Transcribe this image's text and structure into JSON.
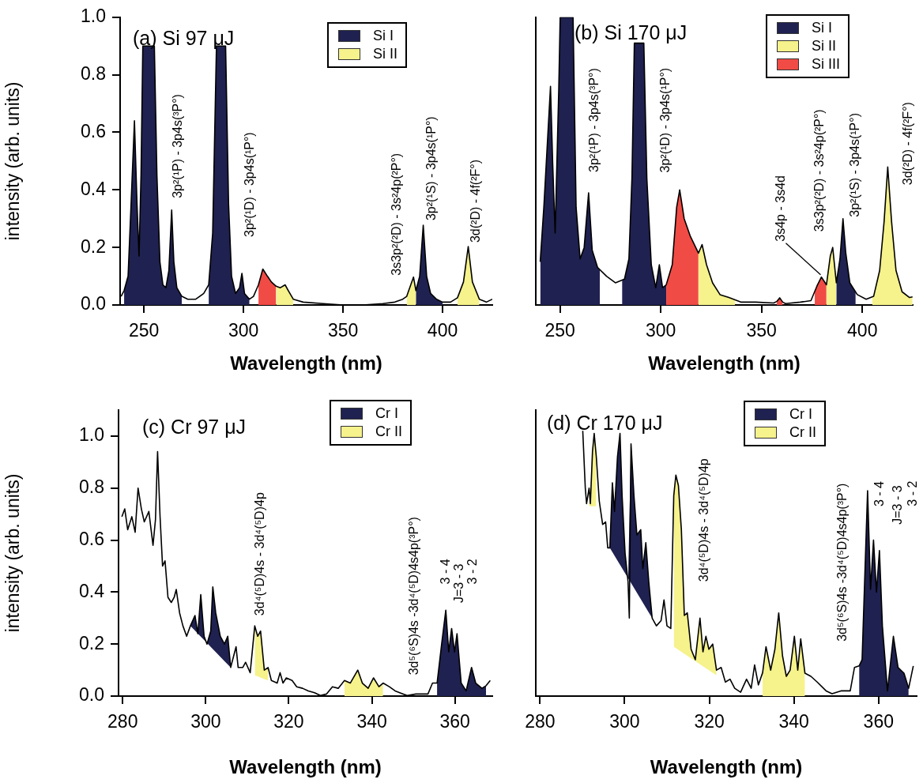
{
  "chart_data": [
    {
      "type": "line",
      "title": "(a) Si 97 μJ",
      "xlabel": "Wavelength (nm)",
      "ylabel": "intensity (arb. units)",
      "xlim": [
        238,
        425
      ],
      "ylim": [
        0,
        1.0
      ],
      "xticks": [
        250,
        300,
        350,
        400
      ],
      "yticks": [
        {
          "value": 0,
          "label": "0.0"
        },
        {
          "value": 0.2,
          "label": "0.2"
        },
        {
          "value": 0.4,
          "label": "0.4"
        },
        {
          "value": 0.6,
          "label": "0.6"
        },
        {
          "value": 0.8,
          "label": "0.8"
        },
        {
          "value": 1.0,
          "label": "1.0"
        }
      ],
      "legend": "top right",
      "series": [
        {
          "type": "line",
          "color": "#000000",
          "x": [
            238.5,
            240,
            242,
            243.5,
            245.2,
            246.5,
            247.5,
            248.5,
            249.4,
            255.2,
            256.5,
            258,
            259.5,
            261,
            262.5,
            263.9,
            265,
            266.5,
            269,
            272,
            276,
            280,
            282.5,
            284.5,
            286.4,
            291,
            292.5,
            294,
            296,
            298,
            299.2,
            300.5,
            303,
            305,
            307.5,
            309.7,
            312,
            314,
            316.4,
            318.5,
            320.9,
            322.5,
            325,
            330,
            340,
            350,
            360,
            370,
            376,
            380,
            382,
            383,
            385.4,
            386.6,
            388.5,
            390.3,
            392,
            394,
            397,
            400,
            404,
            407.5,
            410.5,
            412.9,
            415,
            418.5,
            422,
            425
          ],
          "values": [
            0.03,
            0.05,
            0.1,
            0.35,
            0.64,
            0.35,
            0.17,
            0.45,
            0.9,
            0.9,
            0.45,
            0.15,
            0.07,
            0.06,
            0.12,
            0.33,
            0.15,
            0.06,
            0.03,
            0.02,
            0.02,
            0.04,
            0.07,
            0.25,
            0.9,
            0.9,
            0.35,
            0.1,
            0.04,
            0.06,
            0.11,
            0.04,
            0.02,
            0.03,
            0.07,
            0.125,
            0.1,
            0.08,
            0.065,
            0.06,
            0.07,
            0.05,
            0.02,
            0.01,
            0.005,
            0,
            0,
            0.005,
            0.01,
            0.02,
            0.03,
            0.05,
            0.097,
            0.05,
            0.1,
            0.277,
            0.1,
            0.04,
            0.02,
            0.01,
            0.01,
            0.025,
            0.08,
            0.203,
            0.08,
            0.02,
            0.01,
            0.02
          ]
        },
        {
          "type": "area",
          "name": "Si I",
          "color": "#1f2150",
          "x": [
            240,
            240,
            242,
            243.5,
            245.2,
            246.5,
            247.5,
            248.5,
            249.4,
            255.2,
            256.5,
            258,
            259.5,
            261,
            262.5,
            263.9,
            265,
            266.5,
            269,
            269,
            275,
            282.5,
            282.5,
            284.5,
            286.4,
            291,
            292.5,
            294,
            296,
            298,
            299.2,
            300.5,
            303,
            303,
            345,
            386.6,
            386.6,
            388.5,
            390.3,
            392,
            394,
            397,
            400,
            400
          ],
          "values": [
            0,
            0.05,
            0.1,
            0.35,
            0.64,
            0.35,
            0.17,
            0.45,
            0.9,
            0.9,
            0.45,
            0.15,
            0.07,
            0.06,
            0.12,
            0.33,
            0.15,
            0.06,
            0.03,
            0,
            null,
            0,
            0.07,
            0.25,
            0.9,
            0.9,
            0.35,
            0.1,
            0.04,
            0.06,
            0.11,
            0.04,
            0.02,
            0,
            null,
            0,
            0.05,
            0.1,
            0.277,
            0.1,
            0.04,
            0.02,
            0.01,
            0
          ]
        },
        {
          "type": "area",
          "name": "Si II",
          "color": "#f6f28c",
          "x": [
            316.4,
            316.4,
            318.5,
            320.9,
            322.5,
            325,
            325,
            350,
            382,
            382,
            383,
            385.4,
            386.6,
            386.6,
            395,
            407.5,
            407.5,
            410.5,
            412.9,
            415,
            418.5,
            418.5
          ],
          "values": [
            0,
            0.065,
            0.06,
            0.07,
            0.05,
            0.02,
            0,
            null,
            0,
            0.03,
            0.05,
            0.097,
            0.05,
            0,
            null,
            0,
            0.025,
            0.08,
            0.203,
            0.08,
            0.02,
            0
          ]
        },
        {
          "type": "area",
          "color": "#f14b45",
          "x": [
            307.5,
            307.5,
            309.7,
            312,
            314,
            316.4,
            316.4
          ],
          "values": [
            0,
            0.07,
            0.125,
            0.1,
            0.08,
            0.065,
            0
          ]
        }
      ],
      "annotations": [
        {
          "text": "3p²(¹P) - 3p4s(³P°)",
          "x": 263.9,
          "y": 0.33
        },
        {
          "text": "3p²(¹D) - 3p4s(¹P°)",
          "x": 299.2,
          "y": 0.11
        },
        {
          "text": "3s3p²(²D) - 3s²4p(²P°)",
          "x": 385.4,
          "y": 0.097
        },
        {
          "text": "3p²(¹S) - 3p4s(¹P°)",
          "x": 390.3,
          "y": 0.277
        },
        {
          "text": "3d(²D) - 4f(²F°)",
          "x": 412.9,
          "y": 0.203
        }
      ]
    },
    {
      "type": "line",
      "title": "(b) Si 170 μJ",
      "xlabel": "Wavelength (nm)",
      "xlim": [
        238,
        425
      ],
      "ylim": [
        0,
        1.0
      ],
      "xticks": [
        250,
        300,
        350,
        400
      ],
      "tick_labels": "x",
      "legend": "top right",
      "series": [
        {
          "type": "line",
          "color": "#000000",
          "x": [
            240.2,
            242,
            245.3,
            246.4,
            247.6,
            249.4,
            250.1,
            256.5,
            258,
            260,
            262,
            264.2,
            266,
            268.7,
            273.1,
            277.5,
            282,
            284.2,
            285.7,
            286.9,
            291.6,
            293.1,
            295.3,
            297.5,
            299.3,
            300.9,
            302.7,
            305.7,
            307.9,
            309.4,
            311.6,
            314.6,
            318.7,
            320.5,
            322.7,
            325.7,
            329.4,
            333.8,
            339.7,
            347.1,
            356,
            357.5,
            359,
            360.5,
            361.9,
            369.3,
            374.5,
            377.5,
            379.7,
            382.2,
            384.1,
            385.3,
            387.1,
            388.9,
            390.4,
            391.8,
            393.8,
            397.5,
            401.9,
            405.6,
            408.6,
            410.8,
            412.6,
            414.5,
            416.7,
            419.7,
            423.4,
            424.9
          ],
          "values": [
            0.15,
            0.34,
            0.76,
            0.49,
            0.25,
            0.75,
            1.0,
            1.0,
            0.34,
            0.16,
            0.2,
            0.39,
            0.19,
            0.13,
            0.1,
            0.077,
            0.09,
            0.16,
            0.44,
            0.91,
            0.91,
            0.44,
            0.14,
            0.06,
            0.14,
            0.06,
            0.07,
            0.14,
            0.34,
            0.4,
            0.3,
            0.24,
            0.18,
            0.21,
            0.14,
            0.077,
            0.036,
            0.026,
            0.01,
            0.01,
            0.007,
            0.012,
            0.025,
            0.01,
            0.005,
            0.01,
            0.015,
            0.066,
            0.097,
            0.07,
            0.17,
            0.2,
            0.077,
            0.16,
            0.3,
            0.18,
            0.077,
            0.036,
            0.02,
            0.03,
            0.12,
            0.29,
            0.48,
            0.29,
            0.12,
            0.046,
            0.026,
            0.028
          ]
        },
        {
          "type": "area",
          "name": "Si I",
          "color": "#1f2150",
          "x": [
            240.2,
            240.2,
            242,
            245.3,
            246.4,
            247.6,
            249.4,
            250.1,
            256.5,
            258,
            260,
            262,
            264.2,
            266,
            268.7,
            269.8,
            269.8,
            275,
            280.8,
            280.8,
            282,
            284.2,
            285.7,
            286.9,
            291.6,
            293.1,
            295.3,
            297.5,
            299.3,
            300.9,
            302.7,
            302.7,
            345,
            387.1,
            387.1,
            388.9,
            390.4,
            391.8,
            393.8,
            396.7,
            396.7
          ],
          "values": [
            0,
            0.15,
            0.34,
            0.76,
            0.49,
            0.25,
            0.75,
            1.0,
            1.0,
            0.34,
            0.16,
            0.2,
            0.39,
            0.19,
            0.13,
            0.12,
            0,
            null,
            0,
            0.085,
            0.09,
            0.16,
            0.44,
            0.91,
            0.91,
            0.44,
            0.14,
            0.06,
            0.14,
            0.06,
            0.07,
            0,
            null,
            0,
            0.077,
            0.16,
            0.3,
            0.18,
            0.077,
            0.045,
            0
          ]
        },
        {
          "type": "area",
          "name": "Si II",
          "color": "#f6f28c",
          "x": [
            318.7,
            318.7,
            320.5,
            322.7,
            325.7,
            329.4,
            333.8,
            336.8,
            336.8,
            360,
            382.2,
            382.2,
            384.1,
            385.3,
            387.1,
            387.1,
            400,
            404.9,
            404.9,
            405.6,
            408.6,
            410.8,
            412.6,
            414.5,
            416.7,
            419.7,
            423.4,
            424.9,
            424.9
          ],
          "values": [
            0,
            0.18,
            0.21,
            0.14,
            0.077,
            0.036,
            0.026,
            0.018,
            0,
            null,
            0,
            0.07,
            0.17,
            0.2,
            0.077,
            0,
            null,
            0,
            0.028,
            0.03,
            0.12,
            0.29,
            0.48,
            0.29,
            0.12,
            0.046,
            0.026,
            0.028,
            0
          ]
        },
        {
          "type": "area",
          "name": "Si III",
          "color": "#f14b45",
          "x": [
            302.7,
            302.7,
            305.7,
            307.9,
            309.4,
            311.6,
            314.6,
            318.7,
            318.7,
            340,
            357.5,
            357.5,
            359,
            360.5,
            360.5,
            370,
            376.4,
            376.4,
            377.5,
            379.7,
            382.2,
            382.2
          ],
          "values": [
            0,
            0.07,
            0.14,
            0.34,
            0.4,
            0.3,
            0.24,
            0.18,
            0,
            null,
            0,
            0.012,
            0.025,
            0.01,
            0,
            null,
            0,
            0.047,
            0.066,
            0.097,
            0.07,
            0
          ]
        }
      ],
      "annotations": [
        {
          "text": "3p²(¹P) - 3p4s(³P°)",
          "x": 264.2,
          "y": 0.39
        },
        "3p²(¹D) - 3p4s(¹P°)",
        {
          "text": "3s4p - 3s4d",
          "x": 379.7,
          "y": 0.097
        },
        {
          "text": "3s3p²(²D) - 3s²4p(²P°)",
          "x": 385.3,
          "y": 0.2
        },
        {
          "text": "3p²(¹S) - 3p4s(¹P°)",
          "x": 390.4,
          "y": 0.3
        },
        {
          "text": "3d(²D) - 4f(²F°)",
          "x": 412.6,
          "y": 0.48
        }
      ]
    },
    {
      "type": "line",
      "title": "(c) Cr 97 μJ",
      "xlabel": "Wavelength (nm)",
      "ylabel": "intensity (arb. units)",
      "xlim": [
        279,
        369
      ],
      "ylim": [
        0,
        1.1
      ],
      "xticks": [
        280,
        300,
        320,
        340,
        360
      ],
      "yticks": [
        {
          "value": 0,
          "label": "0.0"
        },
        {
          "value": 0.2,
          "label": "0.2"
        },
        {
          "value": 0.4,
          "label": "0.4"
        },
        {
          "value": 0.6,
          "label": "0.6"
        },
        {
          "value": 0.8,
          "label": "0.8"
        },
        {
          "value": 1.0,
          "label": "1.0"
        }
      ],
      "legend": "top right",
      "series": [
        {
          "type": "line",
          "color": "#000000",
          "x": [
            279.8,
            280.5,
            281.2,
            282.2,
            283,
            283.7,
            284.5,
            285.2,
            286.3,
            287.3,
            287.9,
            288.4,
            289,
            289.6,
            290.2,
            290.9,
            291.7,
            292.4,
            292.9,
            293.7,
            294.5,
            295.4,
            296.3,
            297.4,
            298.1,
            298.8,
            299.6,
            300.3,
            301.2,
            301.7,
            302.4,
            303.5,
            304.5,
            305.3,
            306,
            307.3,
            307.8,
            308.9,
            309.6,
            310.7,
            311.8,
            312.5,
            313.2,
            314.1,
            315,
            315.8,
            317.2,
            317.9,
            318.6,
            319.4,
            320.8,
            321.9,
            323.3,
            324.7,
            326.2,
            327.6,
            329.1,
            330.5,
            331.9,
            333.4,
            334.8,
            336.6,
            337.7,
            339.1,
            340.4,
            341.7,
            342.7,
            344.2,
            345.6,
            348.5,
            350.6,
            353.5,
            354.6,
            355.7,
            356.8,
            357.8,
            358.5,
            359.2,
            359.9,
            360.5,
            361.5,
            362.7,
            364,
            365,
            366.5,
            367.5,
            368.5
          ],
          "values": [
            0.69,
            0.72,
            0.64,
            0.69,
            0.63,
            0.8,
            0.72,
            0.67,
            0.71,
            0.58,
            0.68,
            0.94,
            0.69,
            0.5,
            0.52,
            0.38,
            0.36,
            0.38,
            0.41,
            0.32,
            0.27,
            0.23,
            0.27,
            0.31,
            0.24,
            0.39,
            0.23,
            0.2,
            0.25,
            0.42,
            0.32,
            0.23,
            0.2,
            0.23,
            0.11,
            0.19,
            0.11,
            0.11,
            0.13,
            0.09,
            0.27,
            0.23,
            0.25,
            0.1,
            0.11,
            0.06,
            0.05,
            0.09,
            0.05,
            0.07,
            0.06,
            0.036,
            0.03,
            0.02,
            0.013,
            0.002,
            0.008,
            0.036,
            0.03,
            0.06,
            0.05,
            0.1,
            0.05,
            0.03,
            0.07,
            0.036,
            0.05,
            0.036,
            0.02,
            0.002,
            0.008,
            0.008,
            0.05,
            0.05,
            0.2,
            0.33,
            0.17,
            0.26,
            0.17,
            0.24,
            0.05,
            0.02,
            0.11,
            0.05,
            0.03,
            0.04,
            0.06
          ]
        },
        {
          "type": "area",
          "name": "Cr I",
          "color": "#1f2150",
          "x": [
            296.3,
            297.4,
            298.1,
            298.8,
            299.6,
            300.3,
            301.2,
            301.7,
            302.4,
            303.5,
            304.5,
            305.3,
            306,
            330,
            355.7,
            355.7,
            356.8,
            357.8,
            358.5,
            359.2,
            359.9,
            360.5,
            361.5,
            362.7,
            364,
            365,
            366.5,
            367.5,
            367.5
          ],
          "values": [
            0.27,
            0.31,
            0.24,
            0.39,
            0.23,
            0.2,
            0.25,
            0.42,
            0.32,
            0.23,
            0.2,
            0.23,
            0.11,
            null,
            0,
            0.05,
            0.2,
            0.33,
            0.17,
            0.26,
            0.17,
            0.24,
            0.05,
            0.02,
            0.11,
            0.05,
            0.03,
            0.04,
            0
          ]
        },
        {
          "type": "area",
          "name": "Cr II",
          "color": "#f6f28c",
          "x": [
            311.8,
            311.8,
            312.5,
            313.2,
            314.1,
            315,
            315,
            325,
            333.4,
            333.4,
            334.8,
            336.6,
            337.7,
            339.1,
            340.4,
            341.7,
            342.7,
            342.7
          ],
          "values": [
            0.08,
            0.27,
            0.23,
            0.25,
            0.1,
            0.11,
            0.06,
            null,
            0,
            0.06,
            0.05,
            0.1,
            0.05,
            0.03,
            0.07,
            0.036,
            0.05,
            0
          ]
        }
      ],
      "annotations": [
        {
          "text": "3d⁴(⁵D)4s - 3d⁴(⁵D)4p",
          "x": 311.8,
          "y": 0.27
        },
        {
          "text": "3d⁵(⁶S)4s -3d⁴(⁵D)4s4p(³P°)",
          "x": 350.6,
          "y": 0.008
        },
        {
          "text": "3 - 4",
          "x": 357.8,
          "y": 0.33
        },
        {
          "text": "J=3 - 3",
          "x": 360.5,
          "y": 0.24
        },
        "3 - 2"
      ]
    },
    {
      "type": "line",
      "title": "(d) Cr 170 μJ",
      "xlabel": "Wavelength (nm)",
      "xlim": [
        279,
        369
      ],
      "ylim": [
        0,
        1.1
      ],
      "xticks": [
        280,
        300,
        320,
        340,
        360
      ],
      "tick_labels": "x",
      "legend": "top right",
      "series": [
        {
          "type": "line",
          "color": "#000000",
          "x": [
            290.1,
            290.7,
            291,
            291.6,
            291.9,
            292.4,
            292.8,
            293.3,
            294,
            294.8,
            295.5,
            296,
            296.5,
            297.1,
            297.6,
            298.3,
            298.9,
            299.4,
            300.1,
            300.8,
            301.1,
            301.5,
            302.2,
            302.9,
            303.8,
            304.3,
            305,
            305.7,
            306.5,
            307.5,
            308.6,
            309.3,
            310,
            310.9,
            311.6,
            312.1,
            312.7,
            313.4,
            314.1,
            314.8,
            315.7,
            316.7,
            317.8,
            318.5,
            319.2,
            319.9,
            320.8,
            321.7,
            322.8,
            323.8,
            324.9,
            326,
            327.4,
            328.8,
            329.9,
            330.7,
            331.6,
            332.6,
            333.4,
            334.5,
            335.5,
            336.4,
            337.3,
            338.2,
            339.1,
            340.1,
            340.9,
            341.6,
            342.6,
            344,
            345.5,
            347.6,
            349,
            351.1,
            353.3,
            354.3,
            355.4,
            356.1,
            357.4,
            358.1,
            358.8,
            359.5,
            360.2,
            360.9,
            362.1,
            363.5,
            364.6,
            366,
            367.1,
            368.2
          ],
          "values": [
            1.02,
            0.8,
            0.74,
            0.8,
            0.74,
            0.94,
            1.01,
            0.92,
            0.75,
            0.66,
            0.67,
            0.57,
            0.57,
            0.82,
            0.71,
            0.92,
            1.01,
            0.77,
            0.55,
            0.44,
            0.3,
            0.97,
            0.77,
            0.62,
            0.64,
            0.49,
            0.59,
            0.44,
            0.3,
            0.27,
            0.29,
            0.37,
            0.27,
            0.26,
            0.77,
            0.85,
            0.81,
            0.64,
            0.31,
            0.32,
            0.18,
            0.14,
            0.3,
            0.17,
            0.23,
            0.18,
            0.2,
            0.1,
            0.11,
            0.054,
            0.065,
            0.03,
            0.015,
            0.065,
            0.03,
            0.12,
            0.043,
            0.09,
            0.19,
            0.1,
            0.18,
            0.32,
            0.155,
            0.076,
            0.1,
            0.23,
            0.1,
            0.22,
            0.088,
            0.076,
            0.054,
            0.02,
            0.009,
            0.02,
            0.02,
            0.11,
            0.116,
            0.14,
            0.79,
            0.41,
            0.6,
            0.4,
            0.56,
            0.27,
            0.02,
            0.23,
            0.11,
            0.088,
            0.03,
            0.116
          ]
        },
        {
          "type": "area",
          "name": "Cr I",
          "color": "#1f2150",
          "x": [
            296.5,
            297.1,
            297.6,
            298.3,
            298.9,
            299.4,
            300.1,
            300.8,
            301.5,
            302.2,
            302.9,
            303.8,
            304.3,
            305,
            305.7,
            306.5,
            330,
            355.4,
            355.4,
            356.1,
            357.4,
            358.1,
            358.8,
            359.5,
            360.2,
            360.9,
            362.1,
            363.5,
            364.6,
            366,
            367.1,
            367.1
          ],
          "values": [
            0.57,
            0.82,
            0.71,
            0.92,
            1.01,
            0.77,
            0.55,
            0.44,
            0.97,
            0.77,
            0.62,
            0.64,
            0.49,
            0.59,
            0.44,
            0.3,
            null,
            0,
            0.116,
            0.14,
            0.79,
            0.41,
            0.6,
            0.4,
            0.56,
            0.27,
            0.02,
            0.23,
            0.11,
            0.088,
            0.03,
            0
          ]
        },
        {
          "type": "area",
          "name": "Cr II",
          "color": "#f6f28c",
          "x": [
            291.6,
            291.6,
            291.9,
            292.4,
            292.8,
            293.3,
            293.3,
            300,
            311.6,
            311.6,
            312.1,
            312.7,
            313.4,
            314.1,
            314.8,
            315.7,
            316.7,
            317.8,
            318.5,
            319.2,
            319.9,
            320.8,
            321.7,
            321.7,
            327,
            332.6,
            332.6,
            333.4,
            334.5,
            335.5,
            336.4,
            337.3,
            338.2,
            339.1,
            340.1,
            340.9,
            341.6,
            342.6,
            342.6
          ],
          "values": [
            0.73,
            0.8,
            0.74,
            0.94,
            1.01,
            0.92,
            0.73,
            null,
            0.19,
            0.77,
            0.85,
            0.81,
            0.64,
            0.31,
            0.32,
            0.18,
            0.14,
            0.3,
            0.17,
            0.23,
            0.18,
            0.2,
            0.1,
            0.08,
            null,
            0,
            0.09,
            0.19,
            0.1,
            0.18,
            0.32,
            0.155,
            0.076,
            0.1,
            0.23,
            0.1,
            0.22,
            0.088,
            0
          ]
        }
      ],
      "annotations": [
        {
          "text": "3d⁴(⁵D)4s - 3d⁴(⁵D)4p",
          "x": 317.8,
          "y": 0.3
        },
        "3d⁵(⁶S)4s -3d⁴(⁵D)4s4p(³P°)",
        {
          "text": "3 - 4",
          "x": 357.4,
          "y": 0.79
        },
        "J=3 - 3",
        "3 - 2"
      ]
    }
  ]
}
